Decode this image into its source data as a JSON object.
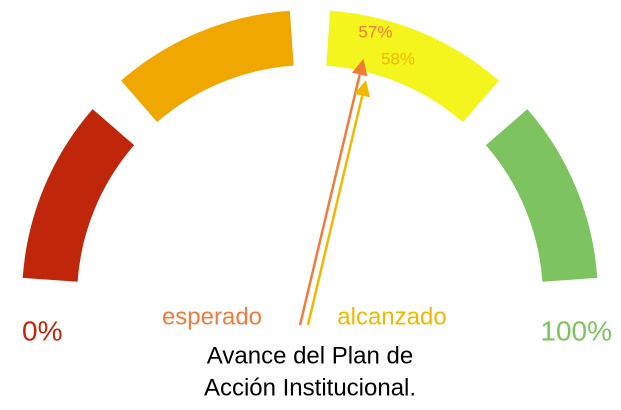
{
  "chart_data": {
    "type": "gauge",
    "title_lines": [
      "Avance del Plan de",
      "Acción Institucional."
    ],
    "range_ticks": [
      {
        "value": 0,
        "label": "0%",
        "color": "#c0260a"
      },
      {
        "value": 100,
        "label": "100%",
        "color": "#7dc35f"
      }
    ],
    "bands": [
      {
        "color": "#c0260a"
      },
      {
        "color": "#f0a800"
      },
      {
        "color": "#f5f51e"
      },
      {
        "color": "#7dc35f"
      }
    ],
    "series": [
      {
        "name": "esperado",
        "color": "#f07c3c",
        "values": [
          57
        ],
        "value_labels": [
          "57%"
        ]
      },
      {
        "name": "alcanzado",
        "color": "#f2b800",
        "values": [
          58
        ],
        "value_labels": [
          "58%"
        ]
      }
    ]
  }
}
